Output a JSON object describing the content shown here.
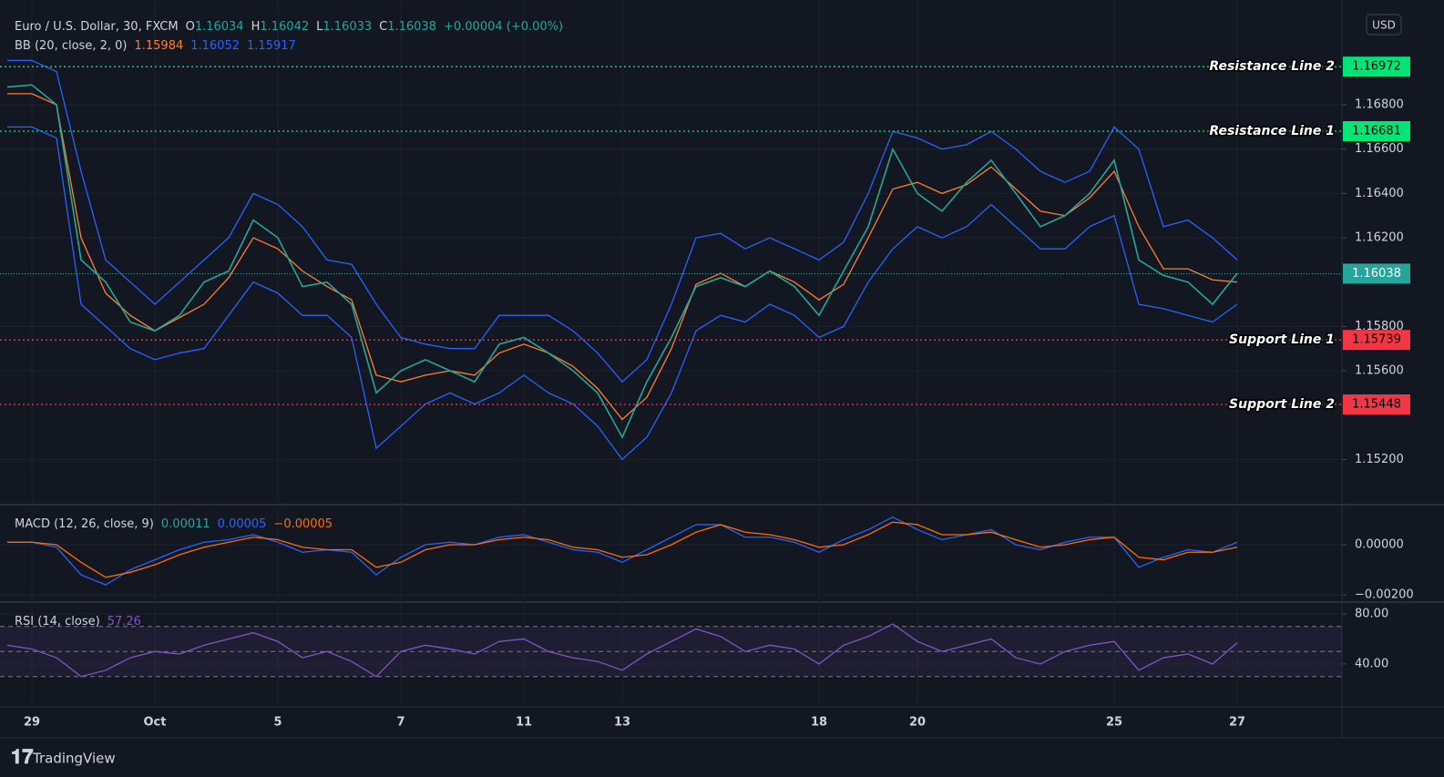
{
  "header": {
    "symbol": "Euro / U.S. Dollar, 30, FXCM",
    "ohlc": [
      {
        "key": "O",
        "value": "1.16034"
      },
      {
        "key": "H",
        "value": "1.16042"
      },
      {
        "key": "L",
        "value": "1.16033"
      },
      {
        "key": "C",
        "value": "1.16038"
      }
    ],
    "change": "+0.00004 (+0.00%)"
  },
  "currency": "USD",
  "brand": "TradingView",
  "chart_data": [
    {
      "type": "line",
      "title": "BB (20, close, 2, 0)",
      "legend_values": [
        {
          "text": "1.15984",
          "color": "#ff7f2a"
        },
        {
          "text": "1.16052",
          "color": "#2962ff"
        },
        {
          "text": "1.15917",
          "color": "#2962ff"
        }
      ],
      "categories": [
        null,
        "29",
        null,
        null,
        null,
        null,
        "Oct",
        null,
        null,
        null,
        null,
        "5",
        null,
        null,
        null,
        null,
        "7",
        null,
        null,
        null,
        null,
        "11",
        null,
        null,
        null,
        "13",
        null,
        null,
        null,
        null,
        null,
        null,
        null,
        "18",
        null,
        null,
        null,
        "20",
        null,
        null,
        null,
        null,
        null,
        null,
        null,
        "25",
        null,
        null,
        null,
        null,
        "27"
      ],
      "series": [
        {
          "color": "#2962ff",
          "values": [
            1.17,
            1.17,
            1.1695,
            1.165,
            1.161,
            1.16,
            1.159,
            1.16,
            1.161,
            1.162,
            1.164,
            1.1635,
            1.1625,
            1.161,
            1.1608,
            1.159,
            1.1575,
            1.1572,
            1.157,
            1.157,
            1.1585,
            1.1585,
            1.1585,
            1.1578,
            1.1568,
            1.1555,
            1.1565,
            1.159,
            1.162,
            1.1622,
            1.1615,
            1.162,
            1.1615,
            1.161,
            1.1618,
            1.164,
            1.1668,
            1.1665,
            1.166,
            1.1662,
            1.1668,
            1.166,
            1.165,
            1.1645,
            1.165,
            1.167,
            1.166,
            1.1625,
            1.1628,
            1.162,
            1.161
          ]
        },
        {
          "color": "#2962ff",
          "values": [
            1.167,
            1.167,
            1.1665,
            1.159,
            1.158,
            1.157,
            1.1565,
            1.1568,
            1.157,
            1.1585,
            1.16,
            1.1595,
            1.1585,
            1.1585,
            1.1575,
            1.1525,
            1.1535,
            1.1545,
            1.155,
            1.1545,
            1.155,
            1.1558,
            1.155,
            1.1545,
            1.1535,
            1.152,
            1.153,
            1.155,
            1.1578,
            1.1585,
            1.1582,
            1.159,
            1.1585,
            1.1575,
            1.158,
            1.16,
            1.1615,
            1.1625,
            1.162,
            1.1625,
            1.1635,
            1.1625,
            1.1615,
            1.1615,
            1.1625,
            1.163,
            1.159,
            1.1588,
            1.1585,
            1.1582,
            1.159
          ]
        },
        {
          "color": "#ff7f2a",
          "values": [
            1.1685,
            1.1685,
            1.168,
            1.162,
            1.1595,
            1.1585,
            1.1578,
            1.1584,
            1.159,
            1.1602,
            1.162,
            1.1615,
            1.1605,
            1.1598,
            1.1592,
            1.1558,
            1.1555,
            1.1558,
            1.156,
            1.1558,
            1.1568,
            1.1572,
            1.1568,
            1.1562,
            1.1552,
            1.1538,
            1.1548,
            1.157,
            1.1599,
            1.1604,
            1.1598,
            1.1605,
            1.16,
            1.1592,
            1.1599,
            1.162,
            1.1642,
            1.1645,
            1.164,
            1.1644,
            1.1652,
            1.1642,
            1.1632,
            1.163,
            1.1638,
            1.165,
            1.1625,
            1.1606,
            1.1606,
            1.1601,
            1.16
          ]
        },
        {
          "color": "#26a69a",
          "values": [
            1.1688,
            1.1689,
            1.168,
            1.161,
            1.16,
            1.1582,
            1.1578,
            1.1585,
            1.16,
            1.1605,
            1.1628,
            1.162,
            1.1598,
            1.16,
            1.159,
            1.155,
            1.156,
            1.1565,
            1.156,
            1.1555,
            1.1572,
            1.1575,
            1.1568,
            1.156,
            1.155,
            1.153,
            1.1555,
            1.1575,
            1.1598,
            1.1602,
            1.1598,
            1.1605,
            1.1598,
            1.1585,
            1.1605,
            1.1625,
            1.166,
            1.164,
            1.1632,
            1.1645,
            1.1655,
            1.164,
            1.1625,
            1.163,
            1.164,
            1.1655,
            1.161,
            1.1603,
            1.16,
            1.159,
            1.1604
          ]
        }
      ],
      "ylim": [
        1.15,
        1.1724
      ],
      "yticks": [
        {
          "value": 1.152,
          "label": "1.15200"
        },
        {
          "value": 1.156,
          "label": "1.15600"
        },
        {
          "value": 1.158,
          "label": "1.15800"
        },
        {
          "value": 1.162,
          "label": "1.16200"
        },
        {
          "value": 1.164,
          "label": "1.16400"
        },
        {
          "value": 1.166,
          "label": "1.16600"
        },
        {
          "value": 1.168,
          "label": "1.16800"
        }
      ],
      "levels": [
        {
          "label": "Resistance Line 2",
          "value": 1.16972,
          "color": "#00e676"
        },
        {
          "label": "Resistance Line 1",
          "value": 1.16681,
          "color": "#00e676"
        },
        {
          "label": "Support Line 1",
          "value": 1.15739,
          "color": "#f23645"
        },
        {
          "label": "Support Line 2",
          "value": 1.15448,
          "color": "#f23645"
        }
      ],
      "last": {
        "value": 1.16038,
        "color": "#26a69a"
      },
      "grid": true
    },
    {
      "type": "line",
      "title": "MACD (12, 26, close, 9)",
      "legend_values": [
        {
          "text": "0.00011",
          "color": "#26a69a"
        },
        {
          "text": "0.00005",
          "color": "#2962ff"
        },
        {
          "text": "−0.00005",
          "color": "#ff6d00"
        }
      ],
      "series": [
        {
          "color": "#2962ff",
          "values": [
            0.0001,
            0.0001,
            -0.0001,
            -0.0012,
            -0.0016,
            -0.001,
            -0.0006,
            -0.0002,
            0.0001,
            0.0002,
            0.0004,
            0.0001,
            -0.0003,
            -0.0002,
            -0.0003,
            -0.0012,
            -0.0005,
            0.0,
            0.0001,
            0.0,
            0.0003,
            0.0004,
            0.0001,
            -0.0002,
            -0.0003,
            -0.0007,
            -0.0002,
            0.0003,
            0.0008,
            0.0008,
            0.0003,
            0.0003,
            0.0001,
            -0.0003,
            0.0002,
            0.0006,
            0.0011,
            0.0006,
            0.0002,
            0.0004,
            0.0006,
            0.0,
            -0.0002,
            0.0001,
            0.0003,
            0.0003,
            -0.0009,
            -0.0005,
            -0.0002,
            -0.0003,
            0.0001
          ]
        },
        {
          "color": "#ff6d00",
          "values": [
            0.0001,
            0.0001,
            0.0,
            -0.0007,
            -0.0013,
            -0.0011,
            -0.0008,
            -0.0004,
            -0.0001,
            0.0001,
            0.0003,
            0.0002,
            -0.0001,
            -0.0002,
            -0.0002,
            -0.0009,
            -0.0007,
            -0.0002,
            0.0,
            0.0,
            0.0002,
            0.0003,
            0.0002,
            -0.0001,
            -0.0002,
            -0.0005,
            -0.0004,
            0.0,
            0.0005,
            0.0008,
            0.0005,
            0.0004,
            0.0002,
            -0.0001,
            0.0,
            0.0004,
            0.0009,
            0.0008,
            0.0004,
            0.0004,
            0.0005,
            0.0002,
            -0.0001,
            0.0,
            0.0002,
            0.0003,
            -0.0005,
            -0.0006,
            -0.0003,
            -0.0003,
            -0.0001
          ]
        }
      ],
      "ylim": [
        -0.00225,
        0.00156
      ],
      "yticks": [
        {
          "value": 0,
          "label": "0.00000"
        },
        {
          "value": -0.002,
          "label": "−0.00200"
        }
      ]
    },
    {
      "type": "line",
      "title": "RSI (14, close)",
      "legend_values": [
        {
          "text": "57.26",
          "color": "#7e57c2"
        }
      ],
      "series": [
        {
          "color": "#7e57c2",
          "values": [
            55,
            52,
            45,
            30,
            35,
            45,
            50,
            48,
            55,
            60,
            65,
            58,
            45,
            50,
            42,
            30,
            50,
            55,
            52,
            48,
            58,
            60,
            50,
            45,
            42,
            35,
            48,
            58,
            68,
            62,
            50,
            55,
            52,
            40,
            55,
            62,
            72,
            58,
            50,
            55,
            60,
            45,
            40,
            50,
            55,
            58,
            35,
            45,
            48,
            40,
            57
          ]
        }
      ],
      "bands": [
        70,
        50,
        30
      ],
      "ylim": [
        6.5,
        88.7
      ],
      "yticks": [
        {
          "value": 80,
          "label": "80.00"
        },
        {
          "value": 40,
          "label": "40.00"
        }
      ]
    }
  ]
}
